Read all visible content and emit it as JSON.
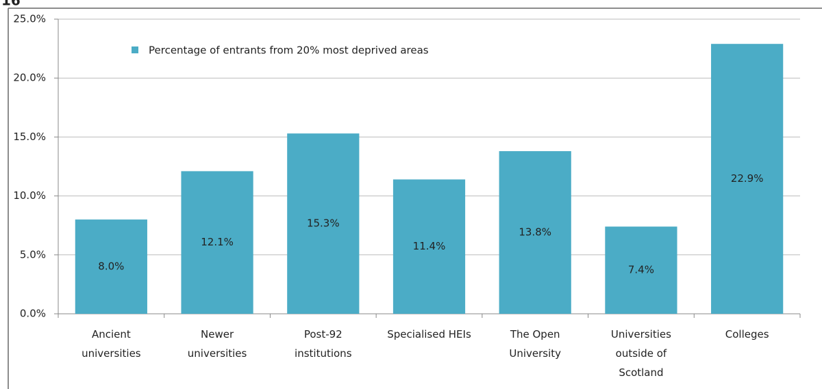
{
  "figure_number": "16",
  "chart_data": {
    "type": "bar",
    "categories": [
      "Ancient universities",
      "Newer universities",
      "Post-92 institutions",
      "Specialised HEIs",
      "The Open University",
      "Universities outside of Scotland",
      "Colleges"
    ],
    "series": [
      {
        "name": "Percentage of entrants from 20% most deprived areas",
        "color": "#4bacc6",
        "values": [
          8.0,
          12.1,
          15.3,
          11.4,
          13.8,
          7.4,
          22.9
        ],
        "value_labels": [
          "8.0%",
          "12.1%",
          "15.3%",
          "11.4%",
          "13.8%",
          "7.4%",
          "22.9%"
        ]
      }
    ],
    "ylim": [
      0,
      25
    ],
    "yticks": [
      {
        "value": 0,
        "label": "0.0%"
      },
      {
        "value": 5,
        "label": "5.0%"
      },
      {
        "value": 10,
        "label": "10.0%"
      },
      {
        "value": 15,
        "label": "15.0%"
      },
      {
        "value": 20,
        "label": "20.0%"
      },
      {
        "value": 25,
        "label": "25.0%"
      }
    ],
    "grid": true,
    "legend": "top"
  }
}
